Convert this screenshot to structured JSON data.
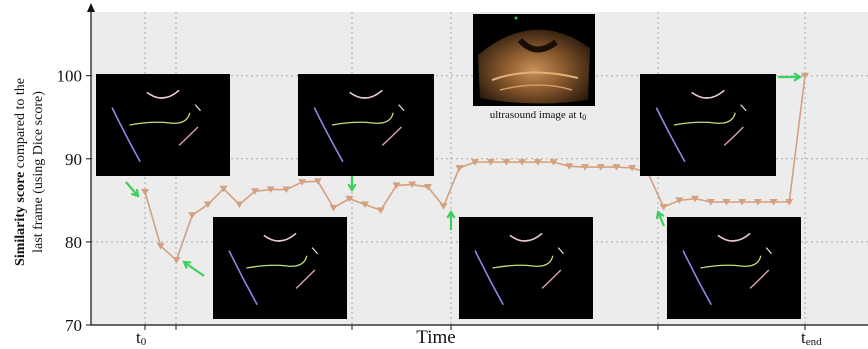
{
  "chart_data": {
    "type": "line",
    "x": [
      1,
      2,
      3,
      4,
      5,
      6,
      7,
      8,
      9,
      10,
      11,
      12,
      13,
      14,
      15,
      16,
      17,
      18,
      19,
      20,
      21,
      22,
      23,
      24,
      25,
      26,
      27,
      28,
      29,
      30,
      31,
      32,
      33,
      34,
      35,
      36,
      37,
      38,
      39,
      40,
      41,
      42,
      43
    ],
    "series": [
      {
        "values": [
          86.0,
          79.5,
          77.8,
          83.2,
          84.5,
          86.4,
          84.5,
          86.1,
          86.3,
          86.3,
          87.2,
          87.3,
          84.1,
          85.2,
          84.5,
          83.8,
          86.8,
          86.9,
          86.6,
          84.3,
          88.9,
          89.6,
          89.6,
          89.6,
          89.6,
          89.6,
          89.6,
          89.1,
          89.0,
          89.0,
          89.0,
          88.9,
          88.3,
          84.2,
          85.0,
          85.2,
          84.8,
          84.8,
          84.8,
          84.8,
          84.8,
          84.8,
          100.0
        ]
      }
    ],
    "ylim": [
      70,
      107
    ],
    "yticks": [
      70,
      80,
      90,
      100
    ],
    "xlabel": "Time",
    "ylabel_bold": "Similarity score",
    "ylabel_rest": "compared to the",
    "ylabel_line2": "last frame  (using Dice score)",
    "xtick_labels": [
      {
        "main": "t",
        "sub": "0"
      },
      {
        "main": "t",
        "sub": "end"
      }
    ],
    "grid": true,
    "line_color": "#d4a07e",
    "marker": "triangle-down",
    "background_color": "#ececec",
    "gridline_color": "#aaaaaa",
    "arrow_color": "#3ccf5e"
  },
  "annotation": {
    "caption_main": "ultrasound image at t",
    "caption_sub": "0"
  },
  "thumbnails": [
    {
      "name": "segmentation-thumbnail-1",
      "style": "mask"
    },
    {
      "name": "segmentation-thumbnail-2",
      "style": "mask"
    },
    {
      "name": "segmentation-thumbnail-3",
      "style": "mask"
    },
    {
      "name": "segmentation-thumbnail-4",
      "style": "mask"
    },
    {
      "name": "segmentation-thumbnail-5",
      "style": "mask"
    },
    {
      "name": "segmentation-thumbnail-6",
      "style": "mask"
    },
    {
      "name": "ultrasound-thumbnail",
      "style": "ultrasound"
    }
  ]
}
